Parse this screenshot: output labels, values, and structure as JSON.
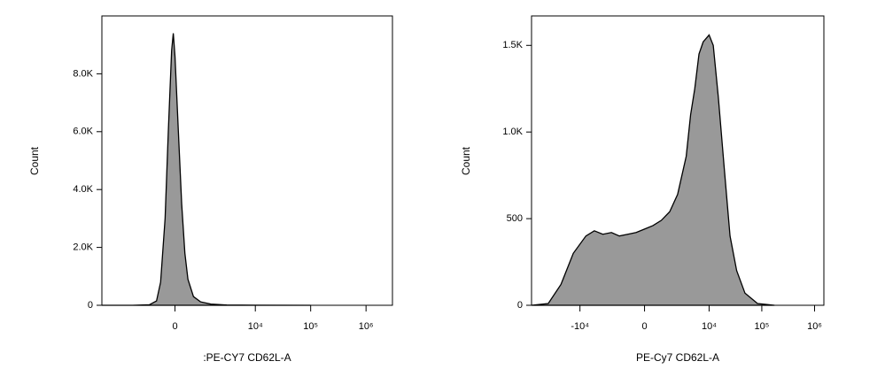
{
  "chart_data": [
    {
      "type": "area",
      "xscale": "biexponential",
      "color": "#999999",
      "xlabel": ":PE-CY7 CD62L-A",
      "ylabel": "Count",
      "xlim": [
        -7400,
        3000000
      ],
      "xticks": [
        0,
        {
          "value": 10000,
          "label": "10⁴"
        },
        {
          "value": 100000,
          "label": "10⁵"
        },
        {
          "value": 1000000,
          "label": "10⁶"
        }
      ],
      "ylim": [
        0,
        10000
      ],
      "yticks": [
        0,
        {
          "value": 2000,
          "label": "2.0K"
        },
        {
          "value": 4000,
          "label": "4.0K"
        },
        {
          "value": 6000,
          "label": "6.0K"
        },
        {
          "value": 8000,
          "label": "8.0K"
        }
      ],
      "x": [
        -7400,
        -2000,
        -900,
        -600,
        -450,
        -300,
        -200,
        -100,
        -50,
        0,
        100,
        200,
        300,
        400,
        600,
        900,
        1500,
        3000,
        10000,
        100000
      ],
      "values": [
        0,
        0,
        20,
        150,
        800,
        3000,
        6000,
        8800,
        9400,
        8600,
        6000,
        3500,
        1800,
        900,
        300,
        120,
        40,
        10,
        3,
        0
      ]
    },
    {
      "type": "area",
      "xscale": "biexponential",
      "color": "#999999",
      "xlabel": "PE-Cy7 CD62L-A",
      "ylabel": "Count",
      "xlim": [
        -83000,
        1500000
      ],
      "xticks": [
        {
          "value": -10000,
          "label": "-10⁴"
        },
        0,
        {
          "value": 10000,
          "label": "10⁴"
        },
        {
          "value": 100000,
          "label": "10⁵"
        },
        {
          "value": 1000000,
          "label": "10⁶"
        }
      ],
      "ylim": [
        0,
        1670
      ],
      "yticks": [
        0,
        500,
        {
          "value": 1000,
          "label": "1.0K"
        },
        {
          "value": 1500,
          "label": "1.5K"
        }
      ],
      "x": [
        -83000,
        -40000,
        -23000,
        -13400,
        -7700,
        -5300,
        -3600,
        -2400,
        -1600,
        -960,
        -450,
        0,
        450,
        960,
        1600,
        2400,
        3600,
        4400,
        5300,
        6400,
        7700,
        10000,
        12000,
        15000,
        19300,
        25000,
        33400,
        48000,
        83000,
        174000
      ],
      "values": [
        0,
        10,
        120,
        300,
        400,
        430,
        410,
        420,
        400,
        410,
        420,
        440,
        460,
        490,
        540,
        640,
        860,
        1100,
        1250,
        1450,
        1520,
        1560,
        1500,
        1200,
        800,
        400,
        200,
        70,
        10,
        0
      ]
    }
  ]
}
